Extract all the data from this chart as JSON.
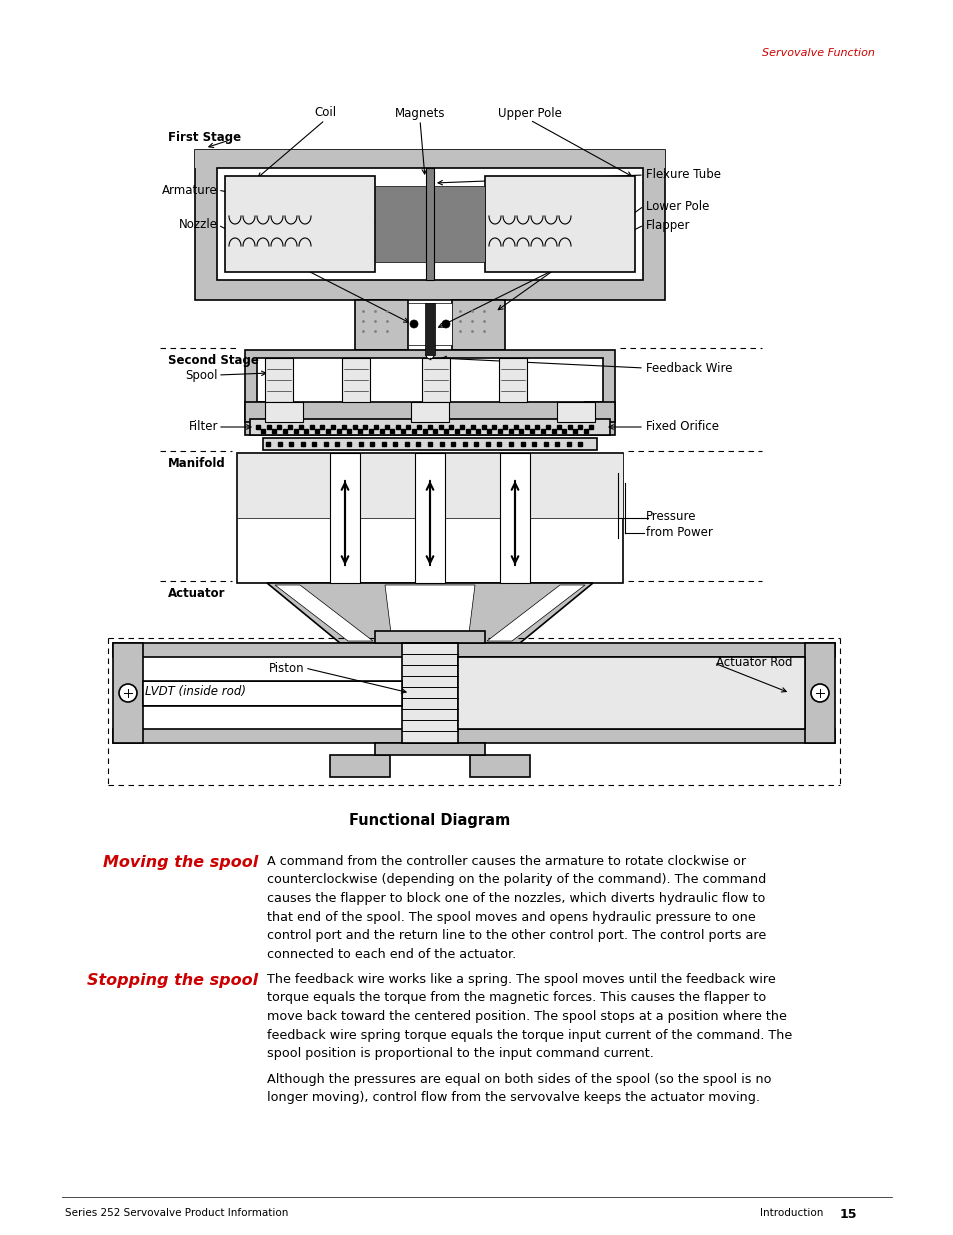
{
  "page_bg": "#ffffff",
  "header_text": "Servovalve Function",
  "header_color": "#cc0000",
  "footer_left": "Series 252 Servovalve Product Information",
  "footer_right": "Introduction",
  "footer_page": "15",
  "caption": "Functional Diagram",
  "section1_title": "Moving the spool",
  "section1_color": "#cc0000",
  "section1_text": "A command from the controller causes the armature to rotate clockwise or\ncounterclockwise (depending on the polarity of the command). The command\ncauses the flapper to block one of the nozzles, which diverts hydraulic flow to\nthat end of the spool. The spool moves and opens hydraulic pressure to one\ncontrol port and the return line to the other control port. The control ports are\nconnected to each end of the actuator.",
  "section2_title": "Stopping the spool",
  "section2_color": "#cc0000",
  "section2_text": "The feedback wire works like a spring. The spool moves until the feedback wire\ntorque equals the torque from the magnetic forces. This causes the flapper to\nmove back toward the centered position. The spool stops at a position where the\nfeedback wire spring torque equals the torque input current of the command. The\nspool position is proportional to the input command current.",
  "section2_text2": "Although the pressures are equal on both sides of the spool (so the spool is no\nlonger moving), control flow from the servovalve keeps the actuator moving.",
  "diagram_labels": {
    "first_stage": "First Stage",
    "coil": "Coil",
    "magnets": "Magnets",
    "upper_pole": "Upper Pole",
    "armature": "Armature",
    "flexure_tube": "Flexure Tube",
    "nozzle": "Nozzle",
    "lower_pole": "Lower Pole",
    "flapper": "Flapper",
    "second_stage": "Second Stage",
    "spool": "Spool",
    "feedback_wire": "Feedback Wire",
    "filter": "Filter",
    "fixed_orifice": "Fixed Orifice",
    "manifold": "Manifold",
    "pressure_from_power": "Pressure\nfrom Power",
    "actuator": "Actuator",
    "piston": "Piston",
    "actuator_rod": "Actuator Rod",
    "lvdt": "LVDT (inside rod)"
  }
}
